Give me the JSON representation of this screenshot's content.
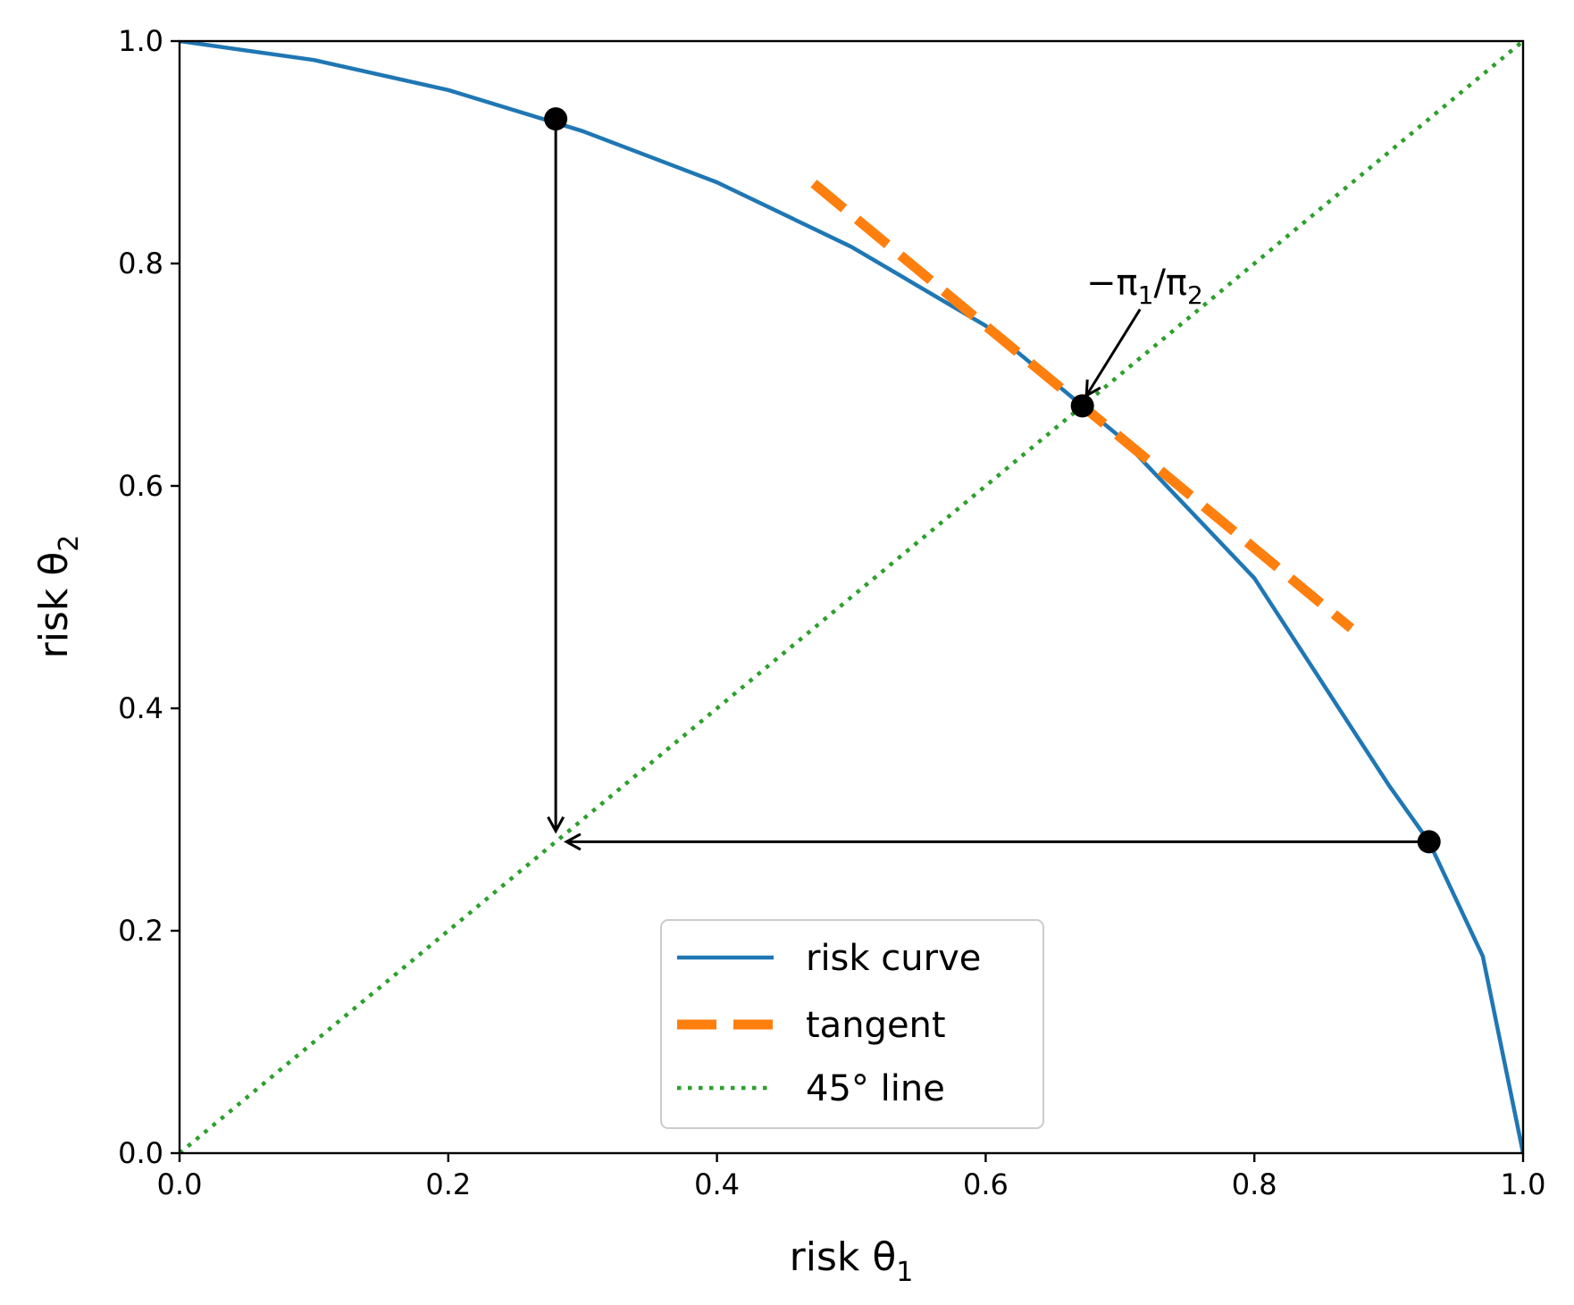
{
  "chart_data": {
    "type": "line",
    "xlabel": "risk θ",
    "xlabel_sub": "1",
    "ylabel": "risk θ",
    "ylabel_sub": "2",
    "xlim": [
      0.0,
      1.0
    ],
    "ylim": [
      0.0,
      1.0
    ],
    "xticks": [
      "0.0",
      "0.2",
      "0.4",
      "0.6",
      "0.8",
      "1.0"
    ],
    "yticks": [
      "0.0",
      "0.2",
      "0.4",
      "0.6",
      "0.8",
      "1.0"
    ],
    "grid": false,
    "legend_position": "lower center",
    "series": [
      {
        "name": "risk curve",
        "style": "solid",
        "color": "#1f77b4",
        "x": [
          0.0,
          0.1,
          0.2,
          0.3,
          0.4,
          0.5,
          0.6,
          0.672,
          0.7,
          0.8,
          0.9,
          0.93,
          0.97,
          1.0
        ],
        "y": [
          1.0,
          0.983,
          0.956,
          0.919,
          0.873,
          0.815,
          0.744,
          0.672,
          0.644,
          0.517,
          0.331,
          0.28,
          0.177,
          0.0
        ]
      },
      {
        "name": "tangent",
        "style": "dashed",
        "color": "#ff7f0e",
        "x": [
          0.472,
          0.872
        ],
        "y": [
          0.872,
          0.472
        ]
      },
      {
        "name": "45° line",
        "style": "dotted",
        "color": "#2ca02c",
        "x": [
          0.0,
          1.0
        ],
        "y": [
          0.0,
          1.0
        ]
      }
    ],
    "points": [
      {
        "x": 0.28,
        "y": 0.93
      },
      {
        "x": 0.672,
        "y": 0.672
      },
      {
        "x": 0.93,
        "y": 0.28
      }
    ],
    "arrows": [
      {
        "from": [
          0.28,
          0.93
        ],
        "to": [
          0.28,
          0.28
        ]
      },
      {
        "from": [
          0.93,
          0.28
        ],
        "to": [
          0.28,
          0.28
        ]
      }
    ],
    "annotation": {
      "text_main": "−π",
      "sub_a": "1",
      "text_slash": "/π",
      "sub_b": "2",
      "text_at": [
        0.675,
        0.77
      ],
      "arrow_to": [
        0.675,
        0.678
      ]
    }
  }
}
